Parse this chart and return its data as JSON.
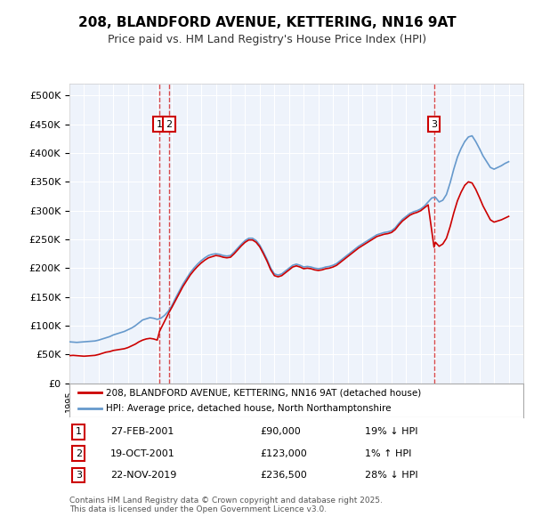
{
  "title": "208, BLANDFORD AVENUE, KETTERING, NN16 9AT",
  "subtitle": "Price paid vs. HM Land Registry's House Price Index (HPI)",
  "background_color": "#ffffff",
  "plot_bg_color": "#eef3fb",
  "grid_color": "#ffffff",
  "ylim": [
    0,
    520000
  ],
  "yticks": [
    0,
    50000,
    100000,
    150000,
    200000,
    250000,
    300000,
    350000,
    400000,
    450000,
    500000
  ],
  "xlim_start": 1995.0,
  "xlim_end": 2026.0,
  "red_line_color": "#cc0000",
  "blue_line_color": "#6699cc",
  "sale_marker_color": "#cc0000",
  "vline_color": "#cc0000",
  "legend_box_color": "#ffffff",
  "legend_line1": "208, BLANDFORD AVENUE, KETTERING, NN16 9AT (detached house)",
  "legend_line2": "HPI: Average price, detached house, North Northamptonshire",
  "transactions": [
    {
      "num": 1,
      "date": "27-FEB-2001",
      "price": 90000,
      "pct": "19%",
      "dir": "↓",
      "x": 2001.15
    },
    {
      "num": 2,
      "date": "19-OCT-2001",
      "price": 123000,
      "pct": "1%",
      "dir": "↑",
      "x": 2001.8
    },
    {
      "num": 3,
      "date": "22-NOV-2019",
      "price": 236500,
      "pct": "28%",
      "dir": "↓",
      "x": 2019.9
    }
  ],
  "footnote": "Contains HM Land Registry data © Crown copyright and database right 2025.\nThis data is licensed under the Open Government Licence v3.0.",
  "hpi_data_x": [
    1995.0,
    1995.25,
    1995.5,
    1995.75,
    1996.0,
    1996.25,
    1996.5,
    1996.75,
    1997.0,
    1997.25,
    1997.5,
    1997.75,
    1998.0,
    1998.25,
    1998.5,
    1998.75,
    1999.0,
    1999.25,
    1999.5,
    1999.75,
    2000.0,
    2000.25,
    2000.5,
    2000.75,
    2001.0,
    2001.25,
    2001.5,
    2001.75,
    2002.0,
    2002.25,
    2002.5,
    2002.75,
    2003.0,
    2003.25,
    2003.5,
    2003.75,
    2004.0,
    2004.25,
    2004.5,
    2004.75,
    2005.0,
    2005.25,
    2005.5,
    2005.75,
    2006.0,
    2006.25,
    2006.5,
    2006.75,
    2007.0,
    2007.25,
    2007.5,
    2007.75,
    2008.0,
    2008.25,
    2008.5,
    2008.75,
    2009.0,
    2009.25,
    2009.5,
    2009.75,
    2010.0,
    2010.25,
    2010.5,
    2010.75,
    2011.0,
    2011.25,
    2011.5,
    2011.75,
    2012.0,
    2012.25,
    2012.5,
    2012.75,
    2013.0,
    2013.25,
    2013.5,
    2013.75,
    2014.0,
    2014.25,
    2014.5,
    2014.75,
    2015.0,
    2015.25,
    2015.5,
    2015.75,
    2016.0,
    2016.25,
    2016.5,
    2016.75,
    2017.0,
    2017.25,
    2017.5,
    2017.75,
    2018.0,
    2018.25,
    2018.5,
    2018.75,
    2019.0,
    2019.25,
    2019.5,
    2019.75,
    2020.0,
    2020.25,
    2020.5,
    2020.75,
    2021.0,
    2021.25,
    2021.5,
    2021.75,
    2022.0,
    2022.25,
    2022.5,
    2022.75,
    2023.0,
    2023.25,
    2023.5,
    2023.75,
    2024.0,
    2024.25,
    2024.5,
    2024.75,
    2025.0
  ],
  "hpi_data_y": [
    72000,
    71500,
    71000,
    71500,
    72000,
    72500,
    73000,
    73500,
    75000,
    77000,
    79000,
    81000,
    84000,
    86000,
    88000,
    90000,
    93000,
    96000,
    100000,
    105000,
    110000,
    112000,
    114000,
    113000,
    111000,
    113000,
    118000,
    125000,
    135000,
    148000,
    160000,
    172000,
    182000,
    192000,
    200000,
    207000,
    213000,
    218000,
    222000,
    224000,
    225000,
    224000,
    222000,
    221000,
    222000,
    228000,
    235000,
    242000,
    248000,
    252000,
    252000,
    248000,
    240000,
    228000,
    215000,
    200000,
    190000,
    188000,
    190000,
    195000,
    200000,
    205000,
    207000,
    205000,
    202000,
    203000,
    202000,
    200000,
    199000,
    200000,
    202000,
    203000,
    205000,
    208000,
    213000,
    218000,
    223000,
    228000,
    233000,
    238000,
    242000,
    246000,
    250000,
    254000,
    258000,
    260000,
    262000,
    263000,
    265000,
    270000,
    278000,
    285000,
    290000,
    295000,
    298000,
    300000,
    303000,
    308000,
    315000,
    322000,
    323000,
    315000,
    318000,
    328000,
    348000,
    372000,
    393000,
    408000,
    420000,
    428000,
    430000,
    420000,
    408000,
    395000,
    385000,
    375000,
    372000,
    375000,
    378000,
    382000,
    385000
  ],
  "red_data_x": [
    1995.0,
    1995.25,
    1995.5,
    1995.75,
    1996.0,
    1996.25,
    1996.5,
    1996.75,
    1997.0,
    1997.25,
    1997.5,
    1997.75,
    1998.0,
    1998.25,
    1998.5,
    1998.75,
    1999.0,
    1999.25,
    1999.5,
    1999.75,
    2000.0,
    2000.25,
    2000.5,
    2000.75,
    2001.0,
    2001.15,
    2001.8,
    2002.0,
    2002.25,
    2002.5,
    2002.75,
    2003.0,
    2003.25,
    2003.5,
    2003.75,
    2004.0,
    2004.25,
    2004.5,
    2004.75,
    2005.0,
    2005.25,
    2005.5,
    2005.75,
    2006.0,
    2006.25,
    2006.5,
    2006.75,
    2007.0,
    2007.25,
    2007.5,
    2007.75,
    2008.0,
    2008.25,
    2008.5,
    2008.75,
    2009.0,
    2009.25,
    2009.5,
    2009.75,
    2010.0,
    2010.25,
    2010.5,
    2010.75,
    2011.0,
    2011.25,
    2011.5,
    2011.75,
    2012.0,
    2012.25,
    2012.5,
    2012.75,
    2013.0,
    2013.25,
    2013.5,
    2013.75,
    2014.0,
    2014.25,
    2014.5,
    2014.75,
    2015.0,
    2015.25,
    2015.5,
    2015.75,
    2016.0,
    2016.25,
    2016.5,
    2016.75,
    2017.0,
    2017.25,
    2017.5,
    2017.75,
    2018.0,
    2018.25,
    2018.5,
    2018.75,
    2019.0,
    2019.25,
    2019.5,
    2019.9,
    2020.0,
    2020.25,
    2020.5,
    2020.75,
    2021.0,
    2021.25,
    2021.5,
    2021.75,
    2022.0,
    2022.25,
    2022.5,
    2022.75,
    2023.0,
    2023.25,
    2023.5,
    2023.75,
    2024.0,
    2024.25,
    2024.5,
    2024.75,
    2025.0
  ],
  "red_data_y": [
    48000,
    48500,
    48000,
    47500,
    47000,
    47500,
    48000,
    48500,
    50000,
    52000,
    54000,
    55000,
    57000,
    58000,
    59000,
    60000,
    62000,
    65000,
    68000,
    72000,
    75000,
    77000,
    78000,
    77000,
    75000,
    90000,
    123000,
    132000,
    144000,
    156000,
    168000,
    178000,
    188000,
    196000,
    203000,
    209000,
    214000,
    218000,
    220000,
    222000,
    221000,
    219000,
    218000,
    219000,
    225000,
    232000,
    239000,
    245000,
    249000,
    249000,
    245000,
    237000,
    225000,
    212000,
    197000,
    187000,
    185000,
    187000,
    192000,
    197000,
    202000,
    204000,
    202000,
    199000,
    200000,
    199000,
    197000,
    196000,
    197000,
    199000,
    200000,
    202000,
    205000,
    210000,
    215000,
    220000,
    225000,
    230000,
    235000,
    239000,
    243000,
    247000,
    251000,
    255000,
    257000,
    259000,
    260000,
    262000,
    267000,
    275000,
    282000,
    287000,
    292000,
    295000,
    297000,
    300000,
    305000,
    310000,
    236500,
    245000,
    238000,
    242000,
    252000,
    272000,
    296000,
    317000,
    332000,
    344000,
    350000,
    348000,
    337000,
    323000,
    308000,
    296000,
    284000,
    280000,
    282000,
    284000,
    287000,
    290000
  ]
}
